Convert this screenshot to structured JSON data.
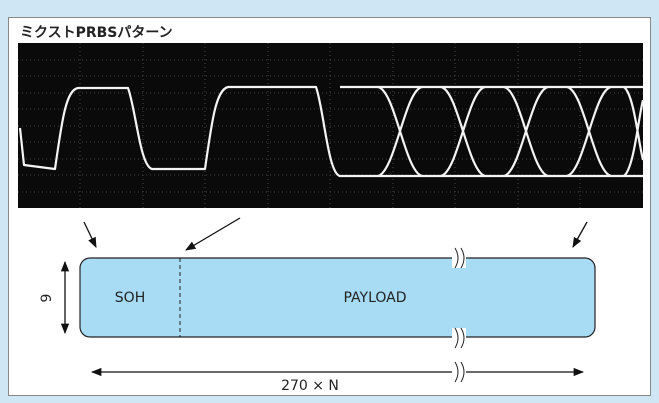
{
  "title": "ミクストPRBSパターン",
  "frame": {
    "soh": "SOH",
    "payload": "PAYLOAD",
    "height_label": "9",
    "width_label": "270 × N"
  }
}
